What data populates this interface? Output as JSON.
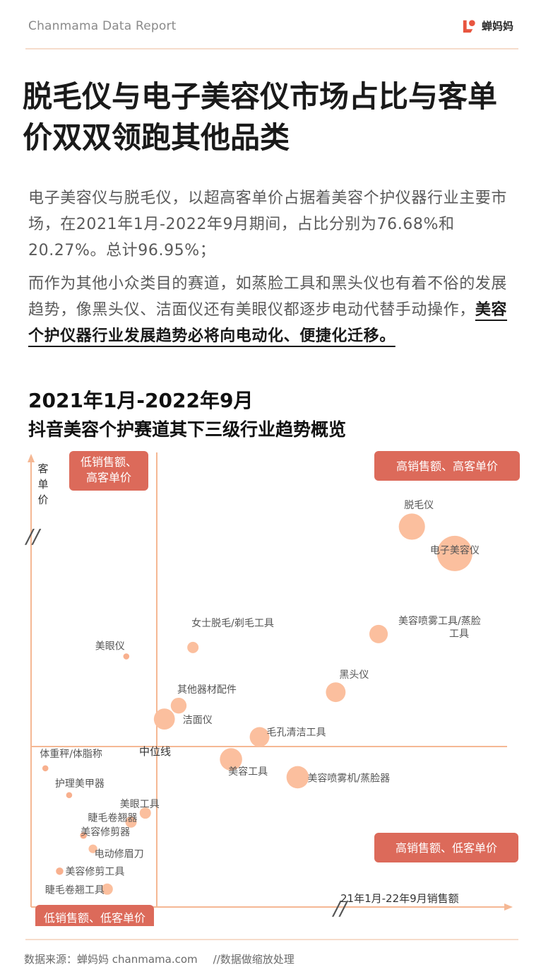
{
  "header": {
    "brand": "Chanmama Data Report",
    "logo_text": "蝉妈妈",
    "accent": "#e8553f"
  },
  "title": "脱毛仪与电子美容仪市场占比与客单价双双领跑其他品类",
  "paragraphs": {
    "p1": "电子美容仪与脱毛仪，以超高客单价占据着美容个护仪器行业主要市场，在2021年1月-2022年9月期间，占比分别为76.68%和20.27%。总计96.95%；",
    "p2_lead": "而作为其他小众类目的赛道，如蒸脸工具和黑头仪也有着不俗的发展趋势，像黑头仪、洁面仪还有美眼仪都逐步电动代替手动操作，",
    "p2_emph": "美容个护仪器行业发展趋势必将向电动化、便捷化迁移。"
  },
  "chart_heading": {
    "title": "2021年1月-2022年9月",
    "subtitle": "抖音美容个护赛道其下三级行业趋势概览"
  },
  "chart_data": {
    "type": "scatter",
    "xlabel": "21年1月-22年9月销售额",
    "ylabel": "客单价",
    "axis_break_mark": "//",
    "median_label": "中位线",
    "quadrant_labels": {
      "top_left": "低销售额、高客单价",
      "top_right": "高销售额、高客单价",
      "bottom_left": "低销售额、低客单价",
      "bottom_right": "高销售额、低客单价"
    },
    "colors": {
      "axis": "#f5b894",
      "bubble": "#fbbf9e",
      "bubble_small": "#f8b08e",
      "quadrant_box": "#dc6a5a",
      "label": "#555555"
    },
    "scale_note": "数据做缩放处理",
    "points": [
      {
        "name": "脱毛仪",
        "x": 0.8,
        "y": 0.85,
        "size": 0.72
      },
      {
        "name": "电子美容仪",
        "x": 0.89,
        "y": 0.79,
        "size": 1.0
      },
      {
        "name": "美容喷雾工具/蒸脸工具",
        "x": 0.73,
        "y": 0.61,
        "size": 0.48
      },
      {
        "name": "女士脱毛/剃毛工具",
        "x": 0.34,
        "y": 0.58,
        "size": 0.26
      },
      {
        "name": "美眼仪",
        "x": 0.2,
        "y": 0.56,
        "size": 0.1
      },
      {
        "name": "黑头仪",
        "x": 0.64,
        "y": 0.48,
        "size": 0.52
      },
      {
        "name": "其他器材配件",
        "x": 0.31,
        "y": 0.45,
        "size": 0.4
      },
      {
        "name": "洁面仪",
        "x": 0.28,
        "y": 0.42,
        "size": 0.56
      },
      {
        "name": "毛孔清洁工具",
        "x": 0.48,
        "y": 0.38,
        "size": 0.52
      },
      {
        "name": "美容工具",
        "x": 0.42,
        "y": 0.33,
        "size": 0.6
      },
      {
        "name": "美容喷雾机/蒸脸器",
        "x": 0.56,
        "y": 0.29,
        "size": 0.6
      },
      {
        "name": "体重秤/体脂称",
        "x": 0.03,
        "y": 0.31,
        "size": 0.1
      },
      {
        "name": "护理美甲器",
        "x": 0.08,
        "y": 0.25,
        "size": 0.1
      },
      {
        "name": "美眼工具",
        "x": 0.24,
        "y": 0.21,
        "size": 0.26
      },
      {
        "name": "睫毛卷翘器",
        "x": 0.21,
        "y": 0.19,
        "size": 0.26
      },
      {
        "name": "美容修剪器",
        "x": 0.11,
        "y": 0.16,
        "size": 0.12
      },
      {
        "name": "电动修眉刀",
        "x": 0.13,
        "y": 0.13,
        "size": 0.18
      },
      {
        "name": "美容修剪工具",
        "x": 0.06,
        "y": 0.08,
        "size": 0.14
      },
      {
        "name": "睫毛卷翘工具",
        "x": 0.16,
        "y": 0.04,
        "size": 0.26
      }
    ]
  },
  "footer": {
    "source": "数据来源：蝉妈妈 chanmama.com",
    "note": "//数据做缩放处理"
  }
}
